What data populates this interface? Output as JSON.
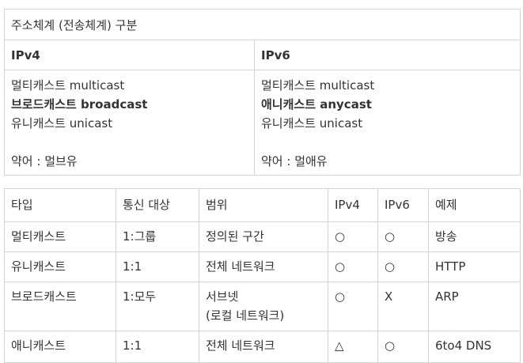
{
  "address_table": {
    "title": "주소체계 (전송체계) 구분",
    "columns": [
      {
        "header": "IPv4",
        "lines": [
          "멀티캐스트 multicast",
          "브로드캐스트 broadcast",
          "유니캐스트 unicast"
        ],
        "bold_line_index": 1,
        "abbrev": "약어 : 멀브유"
      },
      {
        "header": "IPv6",
        "lines": [
          "멀티캐스트 multicast",
          "애니캐스트 anycast",
          "유니캐스트 unicast"
        ],
        "bold_line_index": 1,
        "abbrev": "약어 : 멀애유"
      }
    ]
  },
  "compare_table": {
    "headers": [
      "타입",
      "통신 대상",
      "범위",
      "IPv4",
      "IPv6",
      "예제"
    ],
    "rows": [
      {
        "type": "멀티캐스트",
        "target": "1:그룹",
        "scope": "정의된 구간",
        "scope2": "",
        "ipv4": "○",
        "ipv6": "○",
        "example": "방송"
      },
      {
        "type": "유니캐스트",
        "target": "1:1",
        "scope": "전체 네트워크",
        "scope2": "",
        "ipv4": "○",
        "ipv6": "○",
        "example": "HTTP"
      },
      {
        "type": "브로드캐스트",
        "target": "1:모두",
        "scope": "서브넷",
        "scope2": "(로컬 네트워크)",
        "ipv4": "○",
        "ipv6": "X",
        "example": "ARP"
      },
      {
        "type": "애니캐스트",
        "target": "1:1",
        "scope": "전체 네트워크",
        "scope2": "",
        "ipv4": "△",
        "ipv6": "○",
        "example": "6to4 DNS"
      }
    ]
  }
}
